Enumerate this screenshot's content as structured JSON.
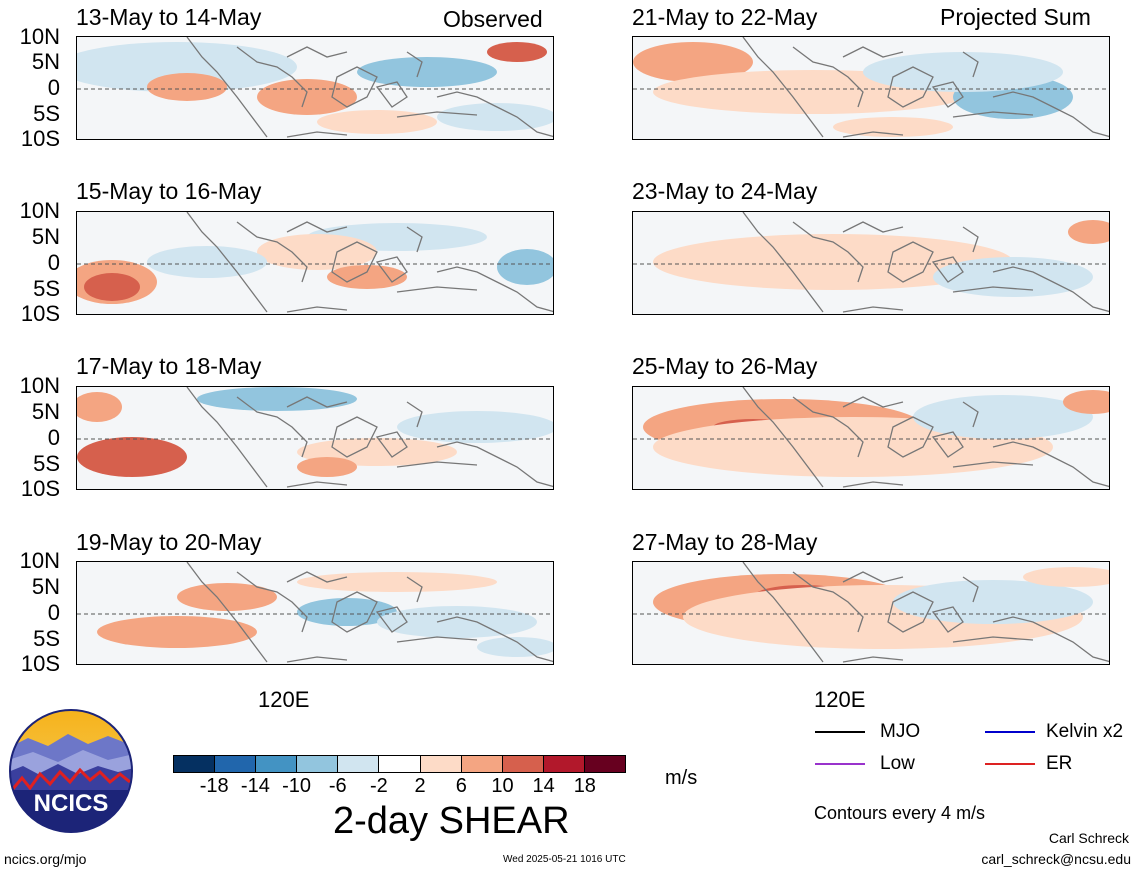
{
  "left_header": "Observed",
  "right_header": "Projected Sum",
  "panels_left": [
    "13-May to 14-May",
    "15-May to 16-May",
    "17-May to 18-May",
    "19-May to 20-May"
  ],
  "panels_right": [
    "21-May to 22-May",
    "23-May to 24-May",
    "25-May to 26-May",
    "27-May to 28-May"
  ],
  "lat_labels": [
    "10N",
    "5N",
    "0",
    "5S",
    "10S"
  ],
  "lon_label": "120E",
  "colorbar": {
    "ticks": [
      "-18",
      "-14",
      "-10",
      "-6",
      "-2",
      "2",
      "6",
      "10",
      "14",
      "18"
    ],
    "colors": [
      "#053061",
      "#2166ac",
      "#4393c3",
      "#92c5de",
      "#d1e5f0",
      "#ffffff",
      "#fddbc7",
      "#f4a582",
      "#d6604d",
      "#b2182b",
      "#67001f"
    ],
    "unit": "m/s",
    "title": "2-day SHEAR"
  },
  "legend": [
    {
      "label": "MJO",
      "color": "#000000"
    },
    {
      "label": "Kelvin x2",
      "color": "#0000cc"
    },
    {
      "label": "Low",
      "color": "#9933cc"
    },
    {
      "label": "ER",
      "color": "#dd2222"
    }
  ],
  "contour_note": "Contours every 4 m/s",
  "logo_text": "NCICS",
  "footer": {
    "url": "ncics.org/mjo",
    "timestamp": "Wed 2025-05-21 1016 UTC",
    "author": "Carl Schreck",
    "email": "carl_schreck@ncsu.edu"
  }
}
